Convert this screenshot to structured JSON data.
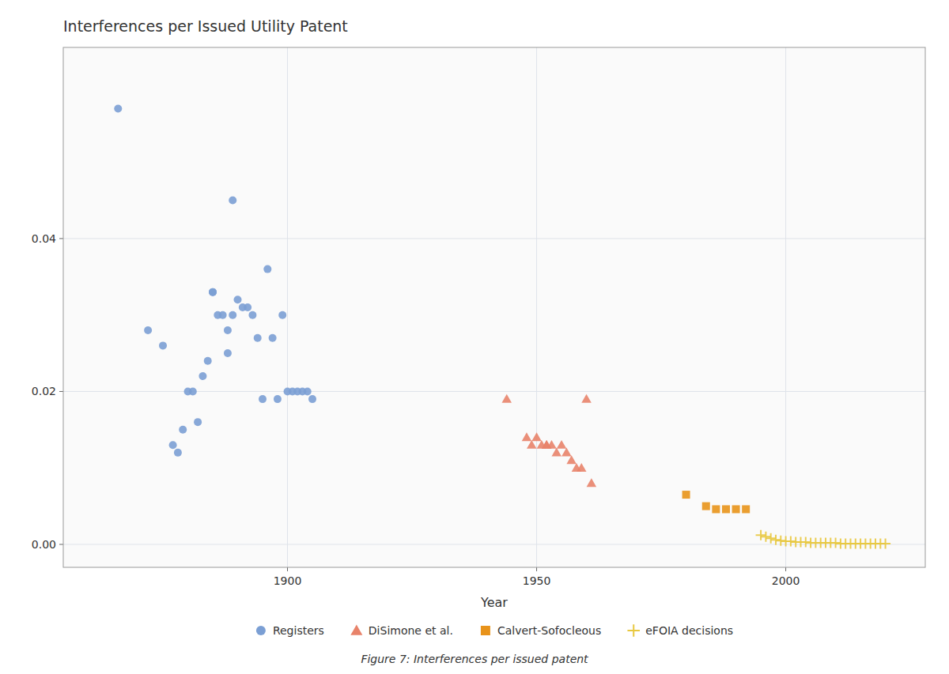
{
  "chart_data": {
    "type": "scatter",
    "title": "Interferences per Issued Utility Patent",
    "x_label": "Year",
    "caption": "Figure 7:  Interferences per issued patent",
    "xlim": [
      1855,
      2028
    ],
    "ylim": [
      -0.003,
      0.065
    ],
    "xticks": [
      1900,
      1950,
      2000
    ],
    "yticks": [
      {
        "value": 0.0,
        "label": "0.00"
      },
      {
        "value": 0.02,
        "label": "0.02"
      },
      {
        "value": 0.04,
        "label": "0.04"
      }
    ],
    "grid": true,
    "legend": "bottom",
    "series": [
      {
        "name": "Registers",
        "color": "#7b9fd4",
        "marker": "circle",
        "x": [
          1866,
          1872,
          1875,
          1877,
          1878,
          1879,
          1880,
          1881,
          1882,
          1883,
          1884,
          1885,
          1885,
          1886,
          1887,
          1888,
          1888,
          1889,
          1889,
          1890,
          1891,
          1892,
          1893,
          1894,
          1895,
          1896,
          1897,
          1898,
          1899,
          1900,
          1901,
          1902,
          1903,
          1904,
          1905
        ],
        "values": [
          0.057,
          0.028,
          0.026,
          0.013,
          0.012,
          0.015,
          0.02,
          0.02,
          0.016,
          0.022,
          0.024,
          0.033,
          0.033,
          0.03,
          0.03,
          0.025,
          0.028,
          0.045,
          0.03,
          0.032,
          0.031,
          0.031,
          0.03,
          0.027,
          0.019,
          0.036,
          0.027,
          0.019,
          0.03,
          0.02,
          0.02,
          0.02,
          0.02,
          0.02,
          0.019
        ]
      },
      {
        "name": "DiSimone et al.",
        "color": "#e8836a",
        "marker": "triangle",
        "x": [
          1944,
          1948,
          1949,
          1950,
          1951,
          1952,
          1952,
          1953,
          1954,
          1955,
          1956,
          1957,
          1958,
          1959,
          1960,
          1961
        ],
        "values": [
          0.019,
          0.014,
          0.013,
          0.014,
          0.013,
          0.013,
          0.013,
          0.013,
          0.012,
          0.013,
          0.012,
          0.011,
          0.01,
          0.01,
          0.019,
          0.008
        ]
      },
      {
        "name": "Calvert-Sofocleous",
        "color": "#e8931a",
        "marker": "square",
        "x": [
          1980,
          1984,
          1986,
          1988,
          1990,
          1992
        ],
        "values": [
          0.0065,
          0.005,
          0.0046,
          0.0046,
          0.0046,
          0.0046
        ]
      },
      {
        "name": "eFOIA decisions",
        "color": "#e8c840",
        "marker": "plus",
        "x": [
          1995,
          1996,
          1997,
          1998,
          1999,
          2000,
          2001,
          2002,
          2003,
          2004,
          2005,
          2006,
          2007,
          2008,
          2009,
          2010,
          2011,
          2012,
          2013,
          2014,
          2015,
          2016,
          2017,
          2018,
          2019,
          2020
        ],
        "values": [
          0.0012,
          0.001,
          0.0008,
          0.0006,
          0.0005,
          0.0004,
          0.0004,
          0.0003,
          0.0003,
          0.0003,
          0.0002,
          0.0002,
          0.0002,
          0.0002,
          0.0002,
          0.0002,
          0.0001,
          0.0001,
          0.0001,
          0.0001,
          0.0001,
          0.0001,
          0.0001,
          0.0001,
          0.0001,
          0.0001
        ]
      }
    ]
  }
}
